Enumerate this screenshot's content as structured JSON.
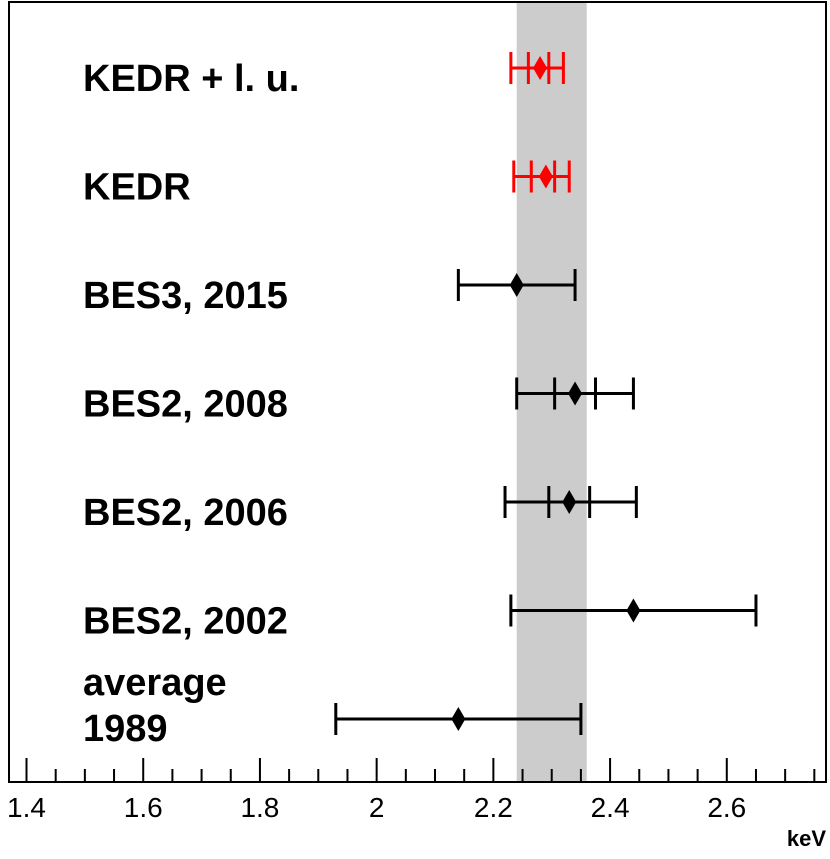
{
  "chart_data": {
    "type": "scatter",
    "title": "",
    "xlabel": "keV",
    "ylabel": "",
    "xlim": [
      1.37,
      2.77
    ],
    "xticks": [
      "1.4",
      "1.6",
      "1.8",
      "2",
      "2.2",
      "2.4",
      "2.6"
    ],
    "band": {
      "from": 2.24,
      "to": 2.36,
      "color": "#cccccc"
    },
    "colors": {
      "highlight": "#ff0000",
      "default": "#000000"
    },
    "marker": "diamond",
    "entries": [
      {
        "label": "KEDR + l. u.",
        "value": 2.28,
        "err_low": 2.23,
        "err_high": 2.32,
        "inner_low": 2.26,
        "inner_high": 2.295,
        "highlight": true
      },
      {
        "label": "KEDR",
        "value": 2.29,
        "err_low": 2.235,
        "err_high": 2.33,
        "inner_low": 2.265,
        "inner_high": 2.305,
        "highlight": true
      },
      {
        "label": "BES3, 2015",
        "value": 2.24,
        "err_low": 2.14,
        "err_high": 2.34,
        "inner_low": null,
        "inner_high": null,
        "highlight": false
      },
      {
        "label": "BES2, 2008",
        "value": 2.34,
        "err_low": 2.24,
        "err_high": 2.44,
        "inner_low": 2.305,
        "inner_high": 2.375,
        "highlight": false
      },
      {
        "label": "BES2, 2006",
        "value": 2.33,
        "err_low": 2.22,
        "err_high": 2.445,
        "inner_low": 2.295,
        "inner_high": 2.365,
        "highlight": false
      },
      {
        "label": "BES2, 2002",
        "value": 2.44,
        "err_low": 2.23,
        "err_high": 2.65,
        "inner_low": null,
        "inner_high": null,
        "highlight": false
      },
      {
        "label": "average\n1989",
        "value": 2.14,
        "err_low": 1.93,
        "err_high": 2.35,
        "inner_low": null,
        "inner_high": null,
        "highlight": false
      }
    ]
  }
}
